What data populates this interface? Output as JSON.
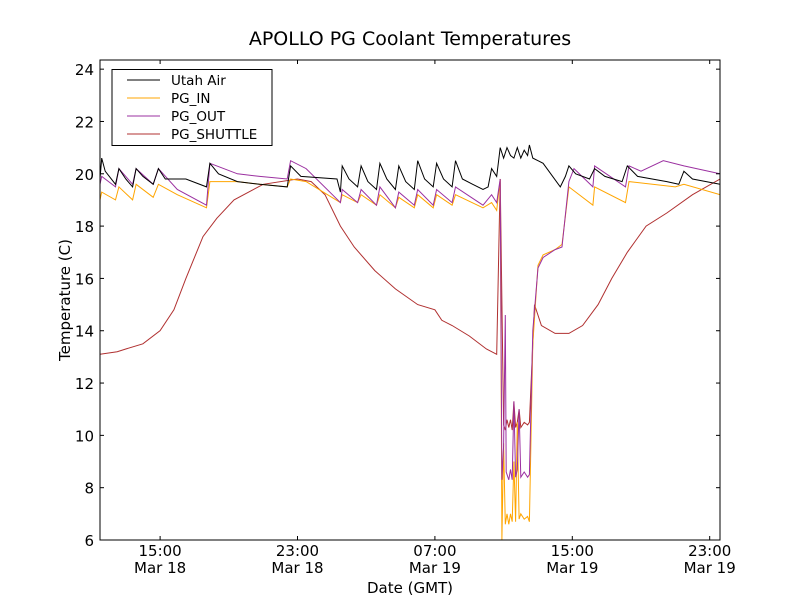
{
  "chart_data": {
    "type": "line",
    "title": "APOLLO PG Coolant Temperatures",
    "xlabel": "Date (GMT)",
    "ylabel": "Temperature (C)",
    "x_units": "hours since Mar 18 00:00 GMT",
    "xlim": [
      11.5,
      47.6
    ],
    "ylim": [
      6,
      24.35
    ],
    "yticks": [
      6,
      8,
      10,
      12,
      14,
      16,
      18,
      20,
      22,
      24
    ],
    "xticks": [
      {
        "x": 15,
        "time": "15:00",
        "date": "Mar 18"
      },
      {
        "x": 23,
        "time": "23:00",
        "date": "Mar 18"
      },
      {
        "x": 31,
        "time": "07:00",
        "date": "Mar 19"
      },
      {
        "x": 39,
        "time": "15:00",
        "date": "Mar 19"
      },
      {
        "x": 47,
        "time": "23:00",
        "date": "Mar 19"
      }
    ],
    "grid": false,
    "legend_position": "top-left",
    "series": [
      {
        "name": "Utah Air",
        "color": "#000000",
        "points": [
          [
            11.5,
            19.8
          ],
          [
            11.6,
            20.6
          ],
          [
            11.8,
            20.1
          ],
          [
            12.4,
            19.6
          ],
          [
            12.6,
            20.2
          ],
          [
            13.0,
            19.8
          ],
          [
            13.4,
            19.5
          ],
          [
            13.6,
            20.2
          ],
          [
            14.0,
            19.9
          ],
          [
            14.6,
            19.6
          ],
          [
            14.9,
            20.2
          ],
          [
            15.3,
            19.8
          ],
          [
            16.5,
            19.8
          ],
          [
            17.7,
            19.5
          ],
          [
            17.9,
            20.4
          ],
          [
            18.4,
            20.0
          ],
          [
            19.5,
            19.7
          ],
          [
            20.8,
            19.6
          ],
          [
            22.4,
            19.5
          ],
          [
            22.6,
            20.3
          ],
          [
            23.2,
            19.9
          ],
          [
            25.3,
            19.8
          ],
          [
            25.5,
            19.3
          ],
          [
            25.6,
            20.3
          ],
          [
            26.0,
            19.8
          ],
          [
            26.5,
            19.5
          ],
          [
            26.7,
            20.3
          ],
          [
            27.1,
            19.7
          ],
          [
            27.6,
            19.4
          ],
          [
            27.8,
            20.4
          ],
          [
            28.2,
            19.8
          ],
          [
            28.7,
            19.4
          ],
          [
            28.9,
            20.3
          ],
          [
            29.3,
            19.7
          ],
          [
            29.8,
            19.4
          ],
          [
            30.0,
            20.5
          ],
          [
            30.4,
            19.8
          ],
          [
            30.9,
            19.5
          ],
          [
            31.1,
            20.4
          ],
          [
            31.5,
            19.8
          ],
          [
            32.0,
            19.5
          ],
          [
            32.2,
            20.5
          ],
          [
            32.6,
            19.8
          ],
          [
            33.2,
            19.6
          ],
          [
            33.8,
            19.4
          ],
          [
            34.1,
            19.5
          ],
          [
            34.3,
            20.2
          ],
          [
            34.6,
            19.9
          ],
          [
            34.8,
            21.0
          ],
          [
            35.0,
            20.6
          ],
          [
            35.2,
            21.0
          ],
          [
            35.4,
            20.7
          ],
          [
            35.6,
            20.6
          ],
          [
            35.8,
            21.0
          ],
          [
            36.0,
            20.6
          ],
          [
            36.2,
            20.9
          ],
          [
            36.4,
            20.7
          ],
          [
            36.5,
            21.1
          ],
          [
            36.7,
            20.6
          ],
          [
            37.0,
            20.5
          ],
          [
            37.3,
            20.4
          ],
          [
            38.3,
            19.5
          ],
          [
            38.6,
            19.9
          ],
          [
            38.8,
            20.3
          ],
          [
            39.2,
            20.0
          ],
          [
            40.0,
            19.8
          ],
          [
            40.3,
            20.2
          ],
          [
            40.9,
            19.9
          ],
          [
            41.9,
            19.7
          ],
          [
            42.2,
            20.3
          ],
          [
            42.8,
            19.9
          ],
          [
            44.5,
            19.7
          ],
          [
            45.2,
            19.6
          ],
          [
            45.5,
            20.1
          ],
          [
            46.0,
            19.8
          ],
          [
            47.6,
            19.6
          ]
        ]
      },
      {
        "name": "PG_IN",
        "color": "#ffa500",
        "points": [
          [
            11.5,
            19.0
          ],
          [
            11.6,
            19.3
          ],
          [
            12.4,
            19.0
          ],
          [
            12.6,
            19.5
          ],
          [
            13.4,
            19.0
          ],
          [
            13.6,
            19.6
          ],
          [
            14.6,
            19.1
          ],
          [
            14.9,
            19.6
          ],
          [
            16.0,
            19.2
          ],
          [
            17.7,
            18.7
          ],
          [
            17.9,
            19.7
          ],
          [
            19.5,
            19.7
          ],
          [
            20.8,
            19.6
          ],
          [
            22.4,
            19.5
          ],
          [
            22.6,
            19.8
          ],
          [
            23.5,
            19.7
          ],
          [
            25.5,
            18.9
          ],
          [
            25.6,
            19.2
          ],
          [
            26.5,
            18.9
          ],
          [
            26.7,
            19.2
          ],
          [
            27.6,
            18.8
          ],
          [
            27.8,
            19.2
          ],
          [
            28.7,
            18.7
          ],
          [
            28.9,
            19.1
          ],
          [
            29.8,
            18.7
          ],
          [
            30.0,
            19.2
          ],
          [
            30.9,
            18.7
          ],
          [
            31.1,
            19.2
          ],
          [
            32.0,
            18.8
          ],
          [
            32.2,
            19.2
          ],
          [
            33.8,
            18.7
          ],
          [
            34.3,
            18.9
          ],
          [
            34.6,
            18.6
          ],
          [
            34.8,
            19.8
          ],
          [
            34.9,
            6.0
          ],
          [
            35.0,
            9.7
          ],
          [
            35.1,
            6.6
          ],
          [
            35.2,
            7.0
          ],
          [
            35.3,
            6.6
          ],
          [
            35.4,
            7.0
          ],
          [
            35.5,
            6.7
          ],
          [
            35.6,
            9.0
          ],
          [
            35.7,
            6.7
          ],
          [
            35.8,
            10.5
          ],
          [
            35.9,
            6.8
          ],
          [
            36.0,
            7.0
          ],
          [
            36.2,
            6.8
          ],
          [
            36.4,
            6.9
          ],
          [
            36.5,
            6.7
          ],
          [
            36.7,
            13.5
          ],
          [
            37.0,
            16.5
          ],
          [
            37.3,
            16.9
          ],
          [
            38.0,
            17.1
          ],
          [
            38.4,
            17.3
          ],
          [
            38.8,
            19.5
          ],
          [
            40.2,
            18.8
          ],
          [
            40.3,
            19.5
          ],
          [
            42.1,
            18.9
          ],
          [
            42.3,
            19.7
          ],
          [
            45.0,
            19.5
          ],
          [
            45.5,
            19.6
          ],
          [
            47.6,
            19.2
          ]
        ]
      },
      {
        "name": "PG_OUT",
        "color": "#9b30a0",
        "points": [
          [
            11.5,
            19.6
          ],
          [
            11.6,
            19.9
          ],
          [
            12.4,
            19.5
          ],
          [
            12.6,
            20.2
          ],
          [
            13.4,
            19.6
          ],
          [
            13.6,
            20.2
          ],
          [
            14.6,
            19.6
          ],
          [
            14.9,
            20.2
          ],
          [
            16.0,
            19.4
          ],
          [
            17.7,
            18.8
          ],
          [
            17.9,
            20.4
          ],
          [
            19.5,
            20.0
          ],
          [
            20.8,
            19.9
          ],
          [
            22.4,
            19.8
          ],
          [
            22.6,
            20.5
          ],
          [
            23.5,
            20.2
          ],
          [
            25.5,
            18.9
          ],
          [
            25.6,
            19.4
          ],
          [
            26.5,
            18.9
          ],
          [
            26.7,
            19.4
          ],
          [
            27.6,
            18.8
          ],
          [
            27.8,
            19.5
          ],
          [
            28.7,
            18.7
          ],
          [
            28.9,
            19.3
          ],
          [
            29.8,
            18.8
          ],
          [
            30.0,
            19.4
          ],
          [
            30.9,
            18.8
          ],
          [
            31.1,
            19.4
          ],
          [
            32.0,
            18.9
          ],
          [
            32.2,
            19.5
          ],
          [
            33.8,
            18.8
          ],
          [
            34.3,
            19.2
          ],
          [
            34.6,
            18.9
          ],
          [
            34.8,
            19.8
          ],
          [
            34.9,
            8.3
          ],
          [
            35.0,
            9.6
          ],
          [
            35.1,
            14.6
          ],
          [
            35.15,
            8.6
          ],
          [
            35.3,
            8.3
          ],
          [
            35.4,
            8.7
          ],
          [
            35.5,
            8.3
          ],
          [
            35.6,
            11.3
          ],
          [
            35.7,
            8.4
          ],
          [
            35.8,
            8.7
          ],
          [
            35.9,
            11.0
          ],
          [
            36.0,
            8.4
          ],
          [
            36.2,
            8.6
          ],
          [
            36.4,
            8.4
          ],
          [
            36.5,
            8.5
          ],
          [
            36.7,
            14.0
          ],
          [
            37.0,
            16.4
          ],
          [
            37.3,
            16.8
          ],
          [
            38.0,
            17.1
          ],
          [
            38.4,
            17.2
          ],
          [
            38.8,
            19.7
          ],
          [
            39.1,
            20.2
          ],
          [
            40.2,
            19.5
          ],
          [
            40.3,
            20.3
          ],
          [
            42.1,
            19.5
          ],
          [
            42.3,
            20.3
          ],
          [
            43.0,
            20.1
          ],
          [
            44.3,
            20.5
          ],
          [
            45.5,
            20.3
          ],
          [
            47.6,
            20.0
          ]
        ]
      },
      {
        "name": "PG_SHUTTLE",
        "color": "#b03030",
        "points": [
          [
            11.5,
            13.1
          ],
          [
            12.5,
            13.2
          ],
          [
            13.0,
            13.3
          ],
          [
            14.0,
            13.5
          ],
          [
            15.0,
            14.0
          ],
          [
            15.8,
            14.8
          ],
          [
            16.5,
            16.0
          ],
          [
            17.5,
            17.6
          ],
          [
            18.3,
            18.3
          ],
          [
            19.3,
            19.0
          ],
          [
            21.0,
            19.6
          ],
          [
            23.0,
            19.8
          ],
          [
            23.8,
            19.7
          ],
          [
            24.6,
            19.2
          ],
          [
            25.5,
            18.0
          ],
          [
            26.3,
            17.2
          ],
          [
            27.5,
            16.3
          ],
          [
            28.7,
            15.6
          ],
          [
            30.0,
            15.0
          ],
          [
            31.0,
            14.8
          ],
          [
            31.4,
            14.4
          ],
          [
            32.0,
            14.2
          ],
          [
            33.0,
            13.8
          ],
          [
            34.0,
            13.3
          ],
          [
            34.6,
            13.1
          ],
          [
            34.8,
            19.8
          ],
          [
            35.0,
            10.4
          ],
          [
            35.1,
            10.2
          ],
          [
            35.2,
            10.6
          ],
          [
            35.3,
            10.3
          ],
          [
            35.4,
            10.6
          ],
          [
            35.5,
            10.2
          ],
          [
            35.6,
            11.3
          ],
          [
            35.7,
            10.3
          ],
          [
            35.8,
            10.5
          ],
          [
            35.9,
            11.0
          ],
          [
            36.0,
            10.3
          ],
          [
            36.2,
            10.5
          ],
          [
            36.4,
            10.4
          ],
          [
            36.5,
            10.5
          ],
          [
            36.8,
            15.0
          ],
          [
            37.2,
            14.2
          ],
          [
            38.0,
            13.9
          ],
          [
            38.8,
            13.9
          ],
          [
            39.6,
            14.2
          ],
          [
            40.5,
            15.0
          ],
          [
            41.3,
            16.0
          ],
          [
            42.2,
            17.0
          ],
          [
            43.3,
            18.0
          ],
          [
            44.5,
            18.5
          ],
          [
            46.0,
            19.2
          ],
          [
            47.6,
            19.8
          ]
        ]
      }
    ]
  }
}
